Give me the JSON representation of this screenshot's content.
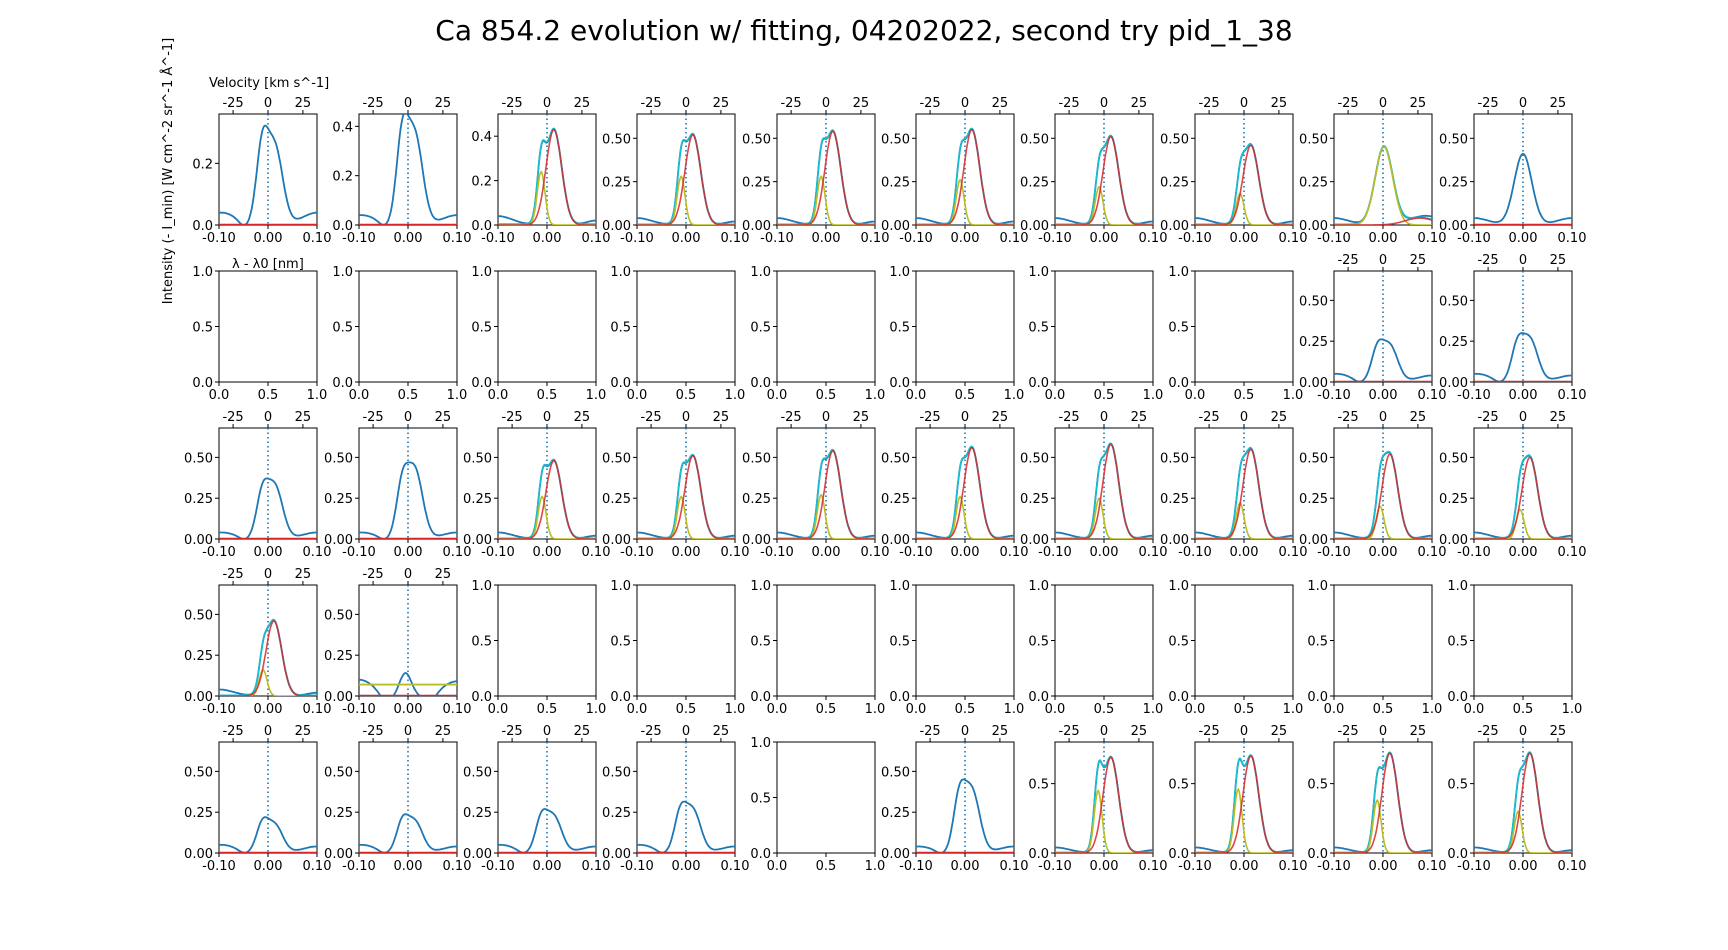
{
  "figure": {
    "title": "Ca 854.2 evolution w/ fitting, 04202022, second try pid_1_38"
  },
  "chart_data": {
    "type": "line",
    "layout": "grid of 5 rows x 10 columns",
    "xlabel": "λ - λ0 [nm]",
    "ylabel": "Intensity (- I_min) [W cm^-2 sr^-1 Å^-1]",
    "secondary_xlabel": "Velocity [km s^-1]",
    "wavelength_ticks": [
      "-0.10",
      "0.00",
      "0.10"
    ],
    "velocity_ticks": [
      "-25",
      "0",
      "25"
    ],
    "empty_ticks": [
      "0.0",
      "0.5",
      "1.0"
    ],
    "xlim_nm": [
      -0.1,
      0.1
    ],
    "line_center_nm": 0.0,
    "series_colors": {
      "observed": "#1f77b4",
      "total_fit": "#17becf",
      "blue_component": "#bcbd22",
      "red_component": "#d62728"
    },
    "panels": [
      {
        "row": 0,
        "col": 0,
        "status": "data",
        "yticks": [
          "0.0",
          "0.2"
        ],
        "ylim": [
          0,
          0.36
        ],
        "data": {
          "type": "obs2",
          "a1": 0.235,
          "a2": 0.25,
          "b": 0.04
        },
        "vlabel": true
      },
      {
        "row": 0,
        "col": 1,
        "status": "data",
        "yticks": [
          "0.0",
          "0.2",
          "0.4"
        ],
        "ylim": [
          0,
          0.45
        ],
        "data": {
          "type": "obs2",
          "a1": 0.33,
          "a2": 0.36,
          "b": 0.04
        }
      },
      {
        "row": 0,
        "col": 2,
        "status": "fit",
        "yticks": [
          "0.0",
          "0.2",
          "0.4"
        ],
        "ylim": [
          0,
          0.5
        ],
        "data": {
          "type": "fit",
          "b": 0.24,
          "r": 0.43,
          "d": -0.012
        }
      },
      {
        "row": 0,
        "col": 3,
        "status": "fit",
        "yticks": [
          "0.00",
          "0.25",
          "0.50"
        ],
        "ylim": [
          0,
          0.64
        ],
        "data": {
          "type": "fit",
          "b": 0.28,
          "r": 0.52,
          "d": -0.01
        }
      },
      {
        "row": 0,
        "col": 4,
        "status": "fit",
        "yticks": [
          "0.00",
          "0.25",
          "0.50"
        ],
        "ylim": [
          0,
          0.64
        ],
        "data": {
          "type": "fit",
          "b": 0.28,
          "r": 0.54,
          "d": -0.01
        }
      },
      {
        "row": 0,
        "col": 5,
        "status": "fit",
        "yticks": [
          "0.00",
          "0.25",
          "0.50"
        ],
        "ylim": [
          0,
          0.64
        ],
        "data": {
          "type": "fit",
          "b": 0.26,
          "r": 0.55,
          "d": -0.01
        }
      },
      {
        "row": 0,
        "col": 6,
        "status": "fit",
        "yticks": [
          "0.00",
          "0.25",
          "0.50"
        ],
        "ylim": [
          0,
          0.64
        ],
        "data": {
          "type": "fit",
          "b": 0.22,
          "r": 0.51,
          "d": -0.01
        }
      },
      {
        "row": 0,
        "col": 7,
        "status": "fit",
        "yticks": [
          "0.00",
          "0.25",
          "0.50"
        ],
        "ylim": [
          0,
          0.64
        ],
        "data": {
          "type": "fit",
          "b": 0.18,
          "r": 0.46,
          "d": -0.008
        }
      },
      {
        "row": 0,
        "col": 8,
        "status": "fit",
        "yticks": [
          "0.00",
          "0.25",
          "0.50"
        ],
        "ylim": [
          0,
          0.64
        ],
        "data": {
          "type": "fitbroad",
          "b": 0.45,
          "r": 0.04
        }
      },
      {
        "row": 0,
        "col": 9,
        "status": "data",
        "yticks": [
          "0.00",
          "0.25",
          "0.50"
        ],
        "ylim": [
          0,
          0.64
        ],
        "data": {
          "type": "obs1",
          "a": 0.41,
          "b": 0.04
        }
      },
      {
        "row": 1,
        "col": 0,
        "status": "empty",
        "xy_label": true
      },
      {
        "row": 1,
        "col": 1,
        "status": "empty"
      },
      {
        "row": 1,
        "col": 2,
        "status": "empty"
      },
      {
        "row": 1,
        "col": 3,
        "status": "empty"
      },
      {
        "row": 1,
        "col": 4,
        "status": "empty"
      },
      {
        "row": 1,
        "col": 5,
        "status": "empty"
      },
      {
        "row": 1,
        "col": 6,
        "status": "empty"
      },
      {
        "row": 1,
        "col": 7,
        "status": "empty"
      },
      {
        "row": 1,
        "col": 8,
        "status": "data",
        "yticks": [
          "0.00",
          "0.25",
          "0.50"
        ],
        "ylim": [
          0,
          0.68
        ],
        "data": {
          "type": "obs2",
          "a1": 0.18,
          "a2": 0.22,
          "b": 0.05
        }
      },
      {
        "row": 1,
        "col": 9,
        "status": "data",
        "yticks": [
          "0.00",
          "0.25",
          "0.50"
        ],
        "ylim": [
          0,
          0.68
        ],
        "data": {
          "type": "obs2",
          "a1": 0.2,
          "a2": 0.26,
          "b": 0.05
        }
      },
      {
        "row": 2,
        "col": 0,
        "status": "data",
        "yticks": [
          "0.00",
          "0.25",
          "0.50"
        ],
        "ylim": [
          0,
          0.68
        ],
        "data": {
          "type": "obs2",
          "a1": 0.25,
          "a2": 0.32,
          "b": 0.04
        }
      },
      {
        "row": 2,
        "col": 1,
        "status": "data",
        "yticks": [
          "0.00",
          "0.25",
          "0.50"
        ],
        "ylim": [
          0,
          0.68
        ],
        "data": {
          "type": "obs2",
          "a1": 0.3,
          "a2": 0.42,
          "b": 0.04
        }
      },
      {
        "row": 2,
        "col": 2,
        "status": "fit",
        "yticks": [
          "0.00",
          "0.25",
          "0.50"
        ],
        "ylim": [
          0,
          0.68
        ],
        "data": {
          "type": "fit",
          "b": 0.26,
          "r": 0.48,
          "d": -0.01
        }
      },
      {
        "row": 2,
        "col": 3,
        "status": "fit",
        "yticks": [
          "0.00",
          "0.25",
          "0.50"
        ],
        "ylim": [
          0,
          0.68
        ],
        "data": {
          "type": "fit",
          "b": 0.26,
          "r": 0.51,
          "d": -0.01
        }
      },
      {
        "row": 2,
        "col": 4,
        "status": "fit",
        "yticks": [
          "0.00",
          "0.25",
          "0.50"
        ],
        "ylim": [
          0,
          0.68
        ],
        "data": {
          "type": "fit",
          "b": 0.27,
          "r": 0.54,
          "d": -0.01
        }
      },
      {
        "row": 2,
        "col": 5,
        "status": "fit",
        "yticks": [
          "0.00",
          "0.25",
          "0.50"
        ],
        "ylim": [
          0,
          0.68
        ],
        "data": {
          "type": "fit",
          "b": 0.26,
          "r": 0.56,
          "d": -0.01
        }
      },
      {
        "row": 2,
        "col": 6,
        "status": "fit",
        "yticks": [
          "0.00",
          "0.25",
          "0.50"
        ],
        "ylim": [
          0,
          0.68
        ],
        "data": {
          "type": "fit",
          "b": 0.25,
          "r": 0.58,
          "d": -0.01
        }
      },
      {
        "row": 2,
        "col": 7,
        "status": "fit",
        "yticks": [
          "0.00",
          "0.25",
          "0.50"
        ],
        "ylim": [
          0,
          0.68
        ],
        "data": {
          "type": "fit",
          "b": 0.22,
          "r": 0.55,
          "d": -0.008
        }
      },
      {
        "row": 2,
        "col": 8,
        "status": "fit",
        "yticks": [
          "0.00",
          "0.25",
          "0.50"
        ],
        "ylim": [
          0,
          0.68
        ],
        "data": {
          "type": "fit",
          "b": 0.2,
          "r": 0.52,
          "d": -0.006
        }
      },
      {
        "row": 2,
        "col": 9,
        "status": "fit",
        "yticks": [
          "0.00",
          "0.25",
          "0.50"
        ],
        "ylim": [
          0,
          0.68
        ],
        "data": {
          "type": "fit",
          "b": 0.18,
          "r": 0.5,
          "d": -0.006
        }
      },
      {
        "row": 3,
        "col": 0,
        "status": "fit",
        "yticks": [
          "0.00",
          "0.25",
          "0.50"
        ],
        "ylim": [
          0,
          0.68
        ],
        "data": {
          "type": "fitA",
          "b": 0.16,
          "r": 0.46
        }
      },
      {
        "row": 3,
        "col": 1,
        "status": "fit",
        "yticks": [
          "0.00",
          "0.25",
          "0.50"
        ],
        "ylim": [
          0,
          0.68
        ],
        "data": {
          "type": "flat",
          "a": 0.14,
          "b": 0.1,
          "level": 0.07
        }
      },
      {
        "row": 3,
        "col": 2,
        "status": "empty"
      },
      {
        "row": 3,
        "col": 3,
        "status": "empty"
      },
      {
        "row": 3,
        "col": 4,
        "status": "empty"
      },
      {
        "row": 3,
        "col": 5,
        "status": "empty"
      },
      {
        "row": 3,
        "col": 6,
        "status": "empty"
      },
      {
        "row": 3,
        "col": 7,
        "status": "empty"
      },
      {
        "row": 3,
        "col": 8,
        "status": "empty"
      },
      {
        "row": 3,
        "col": 9,
        "status": "empty"
      },
      {
        "row": 4,
        "col": 0,
        "status": "data",
        "yticks": [
          "0.00",
          "0.25",
          "0.50"
        ],
        "ylim": [
          0,
          0.68
        ],
        "data": {
          "type": "obs2",
          "a1": 0.16,
          "a2": 0.17,
          "b": 0.05
        }
      },
      {
        "row": 4,
        "col": 1,
        "status": "data",
        "yticks": [
          "0.00",
          "0.25",
          "0.50"
        ],
        "ylim": [
          0,
          0.68
        ],
        "data": {
          "type": "obs2",
          "a1": 0.17,
          "a2": 0.19,
          "b": 0.05
        }
      },
      {
        "row": 4,
        "col": 2,
        "status": "data",
        "yticks": [
          "0.00",
          "0.25",
          "0.50"
        ],
        "ylim": [
          0,
          0.68
        ],
        "data": {
          "type": "obs2",
          "a1": 0.19,
          "a2": 0.22,
          "b": 0.05
        }
      },
      {
        "row": 4,
        "col": 3,
        "status": "data",
        "yticks": [
          "0.00",
          "0.25",
          "0.50"
        ],
        "ylim": [
          0,
          0.68
        ],
        "data": {
          "type": "obs2",
          "a1": 0.22,
          "a2": 0.26,
          "b": 0.05
        }
      },
      {
        "row": 4,
        "col": 4,
        "status": "emptyx"
      },
      {
        "row": 4,
        "col": 5,
        "status": "data",
        "yticks": [
          "0.00",
          "0.25",
          "0.50"
        ],
        "ylim": [
          0,
          0.68
        ],
        "data": {
          "type": "obs2",
          "a1": 0.31,
          "a2": 0.38,
          "b": 0.04
        }
      },
      {
        "row": 4,
        "col": 6,
        "status": "fit",
        "yticks": [
          "0.0",
          "0.5"
        ],
        "ylim": [
          0,
          0.8
        ],
        "data": {
          "type": "fit",
          "b": 0.45,
          "r": 0.69,
          "d": -0.012
        }
      },
      {
        "row": 4,
        "col": 7,
        "status": "fit",
        "yticks": [
          "0.0",
          "0.5"
        ],
        "ylim": [
          0,
          0.8
        ],
        "data": {
          "type": "fit",
          "b": 0.46,
          "r": 0.7,
          "d": -0.012
        }
      },
      {
        "row": 4,
        "col": 8,
        "status": "fit",
        "yticks": [
          "0.0",
          "0.5"
        ],
        "ylim": [
          0,
          0.8
        ],
        "data": {
          "type": "fit",
          "b": 0.38,
          "r": 0.72,
          "d": -0.012
        }
      },
      {
        "row": 4,
        "col": 9,
        "status": "fit",
        "yticks": [
          "0.0",
          "0.5"
        ],
        "ylim": [
          0,
          0.8
        ],
        "data": {
          "type": "fit",
          "b": 0.3,
          "r": 0.72,
          "d": -0.01
        }
      }
    ]
  }
}
